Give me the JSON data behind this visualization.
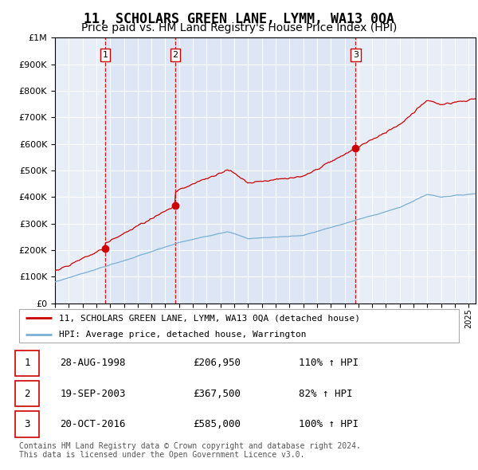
{
  "title": "11, SCHOLARS GREEN LANE, LYMM, WA13 0QA",
  "subtitle": "Price paid vs. HM Land Registry's House Price Index (HPI)",
  "ylim": [
    0,
    1000000
  ],
  "yticks": [
    0,
    100000,
    200000,
    300000,
    400000,
    500000,
    600000,
    700000,
    800000,
    900000,
    1000000
  ],
  "ytick_labels": [
    "£0",
    "£100K",
    "£200K",
    "£300K",
    "£400K",
    "£500K",
    "£600K",
    "£700K",
    "£800K",
    "£900K",
    "£1M"
  ],
  "background_color": "#e8eef8",
  "grid_color": "#ffffff",
  "sale_dates": [
    1998.65,
    2003.72,
    2016.8
  ],
  "sale_prices": [
    206950,
    367500,
    585000
  ],
  "sale_labels": [
    "1",
    "2",
    "3"
  ],
  "sale_pcts": [
    "110%",
    "82%",
    "100%"
  ],
  "sale_date_strs": [
    "28-AUG-1998",
    "19-SEP-2003",
    "20-OCT-2016"
  ],
  "sale_price_strs": [
    "£206,950",
    "£367,500",
    "£585,000"
  ],
  "legend_label_red": "11, SCHOLARS GREEN LANE, LYMM, WA13 0QA (detached house)",
  "legend_label_blue": "HPI: Average price, detached house, Warrington",
  "footer": "Contains HM Land Registry data © Crown copyright and database right 2024.\nThis data is licensed under the Open Government Licence v3.0.",
  "hpi_color": "#7bafd4",
  "price_color": "#cc0000",
  "box_color": "#cc0000",
  "vline_color": "#cc0000",
  "title_fontsize": 12,
  "subtitle_fontsize": 10,
  "tick_fontsize": 8,
  "xmin": 1995,
  "xmax": 2025.5
}
